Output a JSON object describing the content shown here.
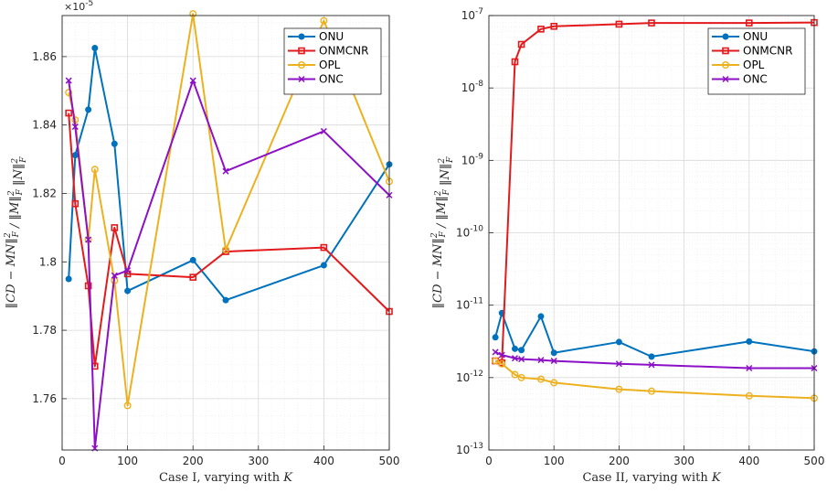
{
  "chart_data": [
    {
      "type": "line",
      "xlabel": "Case I, varying with K",
      "ylabel": "‖CD − MN‖²_F / ‖M‖²_F ‖N‖²_F",
      "y_multiplier": "×10⁻⁵",
      "xlim": [
        0,
        500
      ],
      "ylim": [
        1.745,
        1.872
      ],
      "xticks": [
        "0",
        "100",
        "200",
        "300",
        "400",
        "500"
      ],
      "yticks": [
        "1.76",
        "1.78",
        "1.8",
        "1.82",
        "1.84",
        "1.86"
      ],
      "ytick_values": [
        1.76,
        1.78,
        1.8,
        1.82,
        1.84,
        1.86
      ],
      "yscale": "linear",
      "grid": true,
      "legend_position": "top-right",
      "series": [
        {
          "name": "ONU",
          "color": "#0072BD",
          "marker": "dot",
          "x": [
            10,
            20,
            40,
            50,
            80,
            100,
            200,
            250,
            400,
            500
          ],
          "y": [
            1.795,
            1.8312,
            1.8445,
            1.8625,
            1.8345,
            1.7915,
            1.8005,
            1.7888,
            1.799,
            1.8285
          ]
        },
        {
          "name": "ONMCNR",
          "color": "#E31A1C",
          "marker": "square",
          "x": [
            10,
            20,
            40,
            50,
            80,
            100,
            200,
            250,
            400,
            500
          ],
          "y": [
            1.8435,
            1.817,
            1.793,
            1.7695,
            1.81,
            1.7965,
            1.7955,
            1.803,
            1.8042,
            1.7855
          ]
        },
        {
          "name": "OPL",
          "color": "#EDB120",
          "marker": "circle",
          "x": [
            10,
            20,
            40,
            50,
            80,
            100,
            200,
            250,
            400,
            500
          ],
          "y": [
            1.8495,
            1.8415,
            1.8065,
            1.827,
            1.7945,
            1.758,
            1.8725,
            1.8035,
            1.8705,
            1.8235
          ]
        },
        {
          "name": "ONC",
          "color": "#8B10C6",
          "marker": "x",
          "x": [
            10,
            20,
            40,
            50,
            80,
            100,
            200,
            250,
            400,
            500
          ],
          "y": [
            1.853,
            1.8395,
            1.8065,
            1.7455,
            1.796,
            1.7975,
            1.853,
            1.8265,
            1.8382,
            1.8195
          ]
        }
      ]
    },
    {
      "type": "line",
      "xlabel": "Case II, varying with K",
      "ylabel": "‖CD − MN‖²_F / ‖M‖²_F ‖N‖²_F",
      "xlim": [
        0,
        500
      ],
      "ylim_exp": [
        -13,
        -7
      ],
      "xticks": [
        "0",
        "100",
        "200",
        "300",
        "400",
        "500"
      ],
      "yticks": [
        "10-13",
        "10-12",
        "10-11",
        "10-10",
        "10-9",
        "10-8",
        "10-7"
      ],
      "yscale": "log",
      "grid": true,
      "legend_position": "top-right",
      "series": [
        {
          "name": "ONU",
          "color": "#0072BD",
          "marker": "dot",
          "x": [
            10,
            20,
            40,
            50,
            80,
            100,
            200,
            250,
            400,
            500
          ],
          "y": [
            3.6e-12,
            7.8e-12,
            2.5e-12,
            2.4e-12,
            7e-12,
            2.2e-12,
            3.1e-12,
            1.95e-12,
            3.15e-12,
            2.3e-12
          ]
        },
        {
          "name": "ONMCNR",
          "color": "#E31A1C",
          "marker": "square",
          "x": [
            10,
            20,
            40,
            50,
            80,
            100,
            200,
            250,
            400,
            500
          ],
          "y": [
            1.7e-12,
            1.6e-12,
            2.3e-08,
            4e-08,
            6.5e-08,
            7.1e-08,
            7.6e-08,
            7.9e-08,
            7.9e-08,
            8e-08
          ]
        },
        {
          "name": "OPL",
          "color": "#EDB120",
          "marker": "circle",
          "x": [
            10,
            20,
            40,
            50,
            80,
            100,
            200,
            250,
            400,
            500
          ],
          "y": [
            1.7e-12,
            1.55e-12,
            1.1e-12,
            1e-12,
            9.5e-13,
            8.5e-13,
            6.9e-13,
            6.5e-13,
            5.6e-13,
            5.2e-13
          ]
        },
        {
          "name": "ONC",
          "color": "#8B10C6",
          "marker": "x",
          "x": [
            10,
            20,
            40,
            50,
            80,
            100,
            200,
            250,
            400,
            500
          ],
          "y": [
            2.25e-12,
            2.05e-12,
            1.85e-12,
            1.8e-12,
            1.75e-12,
            1.7e-12,
            1.55e-12,
            1.5e-12,
            1.35e-12,
            1.35e-12
          ]
        }
      ]
    }
  ]
}
